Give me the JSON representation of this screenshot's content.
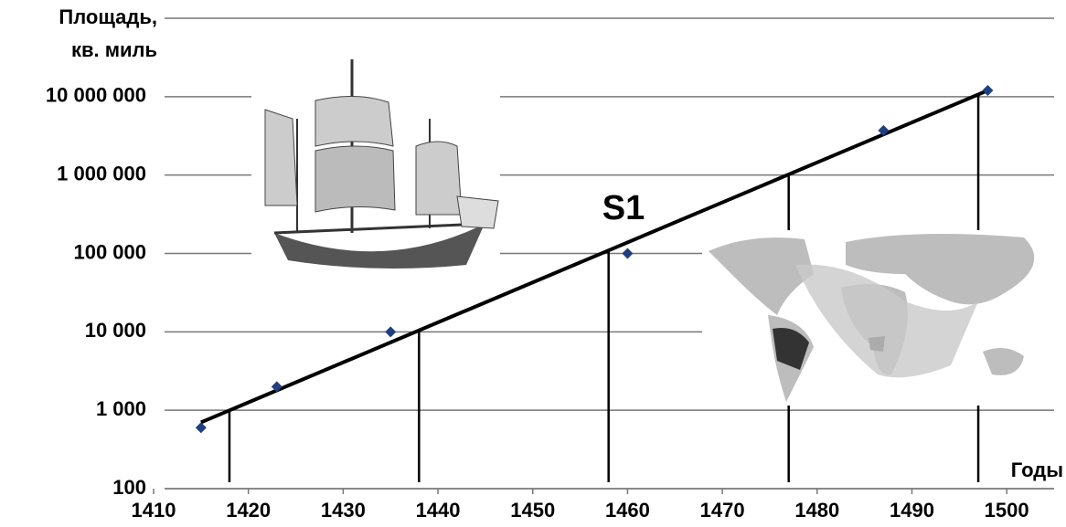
{
  "chart_data": {
    "type": "scatter",
    "ylabel": [
      "Площадь,",
      "кв. миль"
    ],
    "xlabel": "Годы",
    "annotation": "S1",
    "log_y": true,
    "grid": true,
    "x": [
      1415,
      1423,
      1435,
      1460,
      1487,
      1498
    ],
    "series": [
      {
        "color": "#1f3f80",
        "values": [
          600,
          2000,
          10000,
          100000,
          3700000,
          12000000
        ]
      }
    ],
    "trend": {
      "x": [
        1415,
        1498
      ],
      "values": [
        700,
        12000000
      ],
      "color": "#000000"
    },
    "markers_x": [
      1418,
      1438,
      1458,
      1477,
      1497
    ],
    "xlim": [
      1410,
      1505
    ],
    "xticks": [
      1410,
      1420,
      1430,
      1440,
      1450,
      1460,
      1470,
      1480,
      1490,
      1500
    ],
    "ylim": [
      100,
      100000000
    ],
    "yticks": [
      100,
      {
        "value": 1000,
        "label": "1 000"
      },
      {
        "value": 10000,
        "label": "10 000"
      },
      {
        "value": 100000,
        "label": "100 000"
      },
      {
        "value": 1000000,
        "label": "1 000 000"
      },
      {
        "value": 10000000,
        "label": "10 000 000"
      }
    ]
  }
}
